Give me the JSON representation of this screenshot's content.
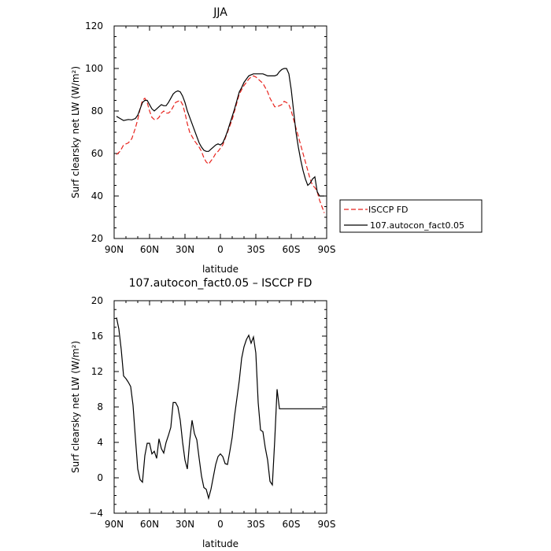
{
  "chart_data": [
    {
      "type": "line",
      "title": "JJA",
      "xlabel": "latitude",
      "ylabel": "Surf clearsky net LW (W/m²)",
      "xlim": [
        90,
        -90
      ],
      "ylim": [
        20,
        120
      ],
      "x_ticks": [
        90,
        60,
        30,
        0,
        -30,
        -60,
        -90
      ],
      "x_tick_labels": [
        "90N",
        "60N",
        "30N",
        "0",
        "30S",
        "60S",
        "90S"
      ],
      "y_ticks": [
        20,
        40,
        60,
        80,
        100,
        120
      ],
      "y_tick_labels": [
        "20",
        "40",
        "60",
        "80",
        "100",
        "120"
      ],
      "legend_position": "right",
      "series": [
        {
          "name": "ISCCP FD",
          "color": "#e8221c",
          "dash": "dashed",
          "x": [
            88,
            85,
            82,
            78,
            75,
            72,
            70,
            68,
            66,
            64,
            62,
            60,
            58,
            56,
            54,
            52,
            50,
            48,
            46,
            44,
            42,
            40,
            38,
            36,
            34,
            32,
            30,
            28,
            26,
            24,
            22,
            20,
            18,
            16,
            14,
            12,
            10,
            8,
            6,
            4,
            2,
            0,
            -2,
            -4,
            -6,
            -8,
            -10,
            -12,
            -14,
            -16,
            -18,
            -20,
            -22,
            -24,
            -26,
            -28,
            -30,
            -32,
            -34,
            -36,
            -38,
            -40,
            -42,
            -44,
            -46,
            -48,
            -50,
            -52,
            -54,
            -56,
            -58,
            -60,
            -62,
            -64,
            -66,
            -68,
            -70,
            -72,
            -74,
            -76,
            -78,
            -80,
            -82,
            -84,
            -86,
            -88
          ],
          "y": [
            59.5,
            61,
            64,
            65,
            67,
            72,
            76,
            81,
            85,
            86,
            84,
            80,
            77,
            76,
            76,
            77,
            79,
            80,
            79,
            79,
            80,
            82,
            84,
            84.5,
            85,
            83,
            79,
            74,
            70,
            68,
            66,
            64.5,
            63,
            61,
            58,
            56,
            55,
            56.5,
            58,
            60,
            61,
            62.5,
            64,
            67,
            70,
            73,
            76,
            80,
            84,
            88,
            90,
            92,
            93.5,
            95,
            96,
            96.5,
            96,
            95,
            94,
            93,
            91,
            89,
            86,
            84,
            82,
            82,
            82.5,
            83,
            84.5,
            84,
            83,
            80,
            76,
            72,
            68,
            64,
            60,
            56,
            52,
            48,
            45,
            44,
            42,
            38,
            35,
            32
          ]
        },
        {
          "name": "107.autocon_fact0.05",
          "color": "#000000",
          "dash": "solid",
          "x": [
            88,
            85,
            82,
            78,
            75,
            72,
            70,
            68,
            66,
            64,
            62,
            60,
            58,
            56,
            54,
            52,
            50,
            48,
            46,
            44,
            42,
            40,
            38,
            36,
            34,
            32,
            30,
            28,
            26,
            24,
            22,
            20,
            18,
            16,
            14,
            12,
            10,
            8,
            6,
            4,
            2,
            0,
            -2,
            -4,
            -6,
            -8,
            -10,
            -12,
            -14,
            -16,
            -18,
            -20,
            -22,
            -24,
            -26,
            -28,
            -30,
            -32,
            -34,
            -36,
            -38,
            -40,
            -42,
            -44,
            -46,
            -48,
            -50,
            -52,
            -54,
            -56,
            -58,
            -60,
            -62,
            -64,
            -66,
            -68,
            -70,
            -72,
            -74,
            -76,
            -78,
            -80,
            -82,
            -84,
            -86,
            -88
          ],
          "y": [
            77.5,
            76.5,
            75.5,
            76,
            75.8,
            76.5,
            78,
            81,
            84,
            85,
            85,
            83,
            81,
            80,
            81,
            82,
            83,
            82.5,
            82.5,
            84,
            86,
            88,
            89,
            89.5,
            89,
            87,
            84,
            80,
            77,
            74,
            71,
            68,
            65,
            63,
            61.5,
            61,
            61,
            62,
            63,
            64,
            64.5,
            64,
            65,
            67.5,
            70.5,
            74,
            77.5,
            81,
            85,
            89,
            91,
            93.5,
            95,
            96.5,
            97,
            97.5,
            97.5,
            97.5,
            97.5,
            97.5,
            97,
            96.5,
            96.5,
            96.5,
            96.5,
            97,
            98.5,
            99.5,
            100,
            100,
            97.5,
            90,
            80,
            70,
            63,
            57,
            52,
            48,
            45,
            46,
            48,
            49,
            42,
            40,
            40,
            40
          ]
        }
      ]
    },
    {
      "type": "line",
      "title": "107.autocon_fact0.05 – ISCCP FD",
      "xlabel": "latitude",
      "ylabel": "Surf clearsky net LW (W/m²)",
      "xlim": [
        90,
        -90
      ],
      "ylim": [
        -4,
        20
      ],
      "x_ticks": [
        90,
        60,
        30,
        0,
        -30,
        -60,
        -90
      ],
      "x_tick_labels": [
        "90N",
        "60N",
        "30N",
        "0",
        "30S",
        "60S",
        "90S"
      ],
      "y_ticks": [
        -4,
        0,
        4,
        8,
        12,
        16,
        20
      ],
      "y_tick_labels": [
        "−4",
        "0",
        "4",
        "8",
        "12",
        "16",
        "20"
      ],
      "series": [
        {
          "name": "",
          "color": "#000000",
          "dash": "solid",
          "x": [
            88,
            86,
            84,
            82,
            80,
            78,
            76,
            74,
            72,
            70,
            68,
            66,
            64,
            62,
            60,
            58,
            56,
            54,
            52,
            50,
            48,
            46,
            44,
            42,
            40,
            38,
            36,
            34,
            32,
            30,
            28,
            26,
            24,
            22,
            20,
            18,
            16,
            14,
            12,
            10,
            8,
            6,
            4,
            2,
            0,
            -2,
            -4,
            -6,
            -8,
            -10,
            -12,
            -14,
            -16,
            -18,
            -20,
            -22,
            -24,
            -26,
            -28,
            -30,
            -32,
            -34,
            -36,
            -38,
            -40,
            -42,
            -44,
            -46,
            -48,
            -50,
            -52,
            -54,
            -56,
            -58,
            -60,
            -62,
            -64,
            -66,
            -68,
            -70,
            -72,
            -74,
            -76,
            -78,
            -80,
            -82,
            -84,
            -86,
            -88
          ],
          "y": [
            18.1,
            16.8,
            14.5,
            11.5,
            11.2,
            10.8,
            10.3,
            8.2,
            4.5,
            1,
            -0.2,
            -0.5,
            2.5,
            3.9,
            3.9,
            2.7,
            3,
            2.2,
            4.4,
            3.3,
            2.8,
            4,
            4.8,
            5.7,
            8.5,
            8.5,
            8,
            6.5,
            4,
            2,
            1,
            4.2,
            6.5,
            5,
            4.3,
            2.2,
            0.2,
            -1.1,
            -1.3,
            -2.3,
            -1.3,
            0.1,
            1.5,
            2.4,
            2.7,
            2.4,
            1.6,
            1.5,
            3,
            4.6,
            7,
            9,
            11,
            13.5,
            14.8,
            15.6,
            16.1,
            15.2,
            15.9,
            14.1,
            8.5,
            5.4,
            5.2,
            3.4,
            2,
            -0.4,
            -0.8,
            4.2,
            10,
            7.8,
            7.8,
            7.8,
            7.8,
            7.8,
            7.8,
            7.8,
            7.8,
            7.8,
            7.8,
            7.8,
            7.8,
            7.8,
            7.8,
            7.8,
            7.8,
            7.8,
            7.8,
            7.8,
            7.8
          ]
        }
      ]
    }
  ]
}
